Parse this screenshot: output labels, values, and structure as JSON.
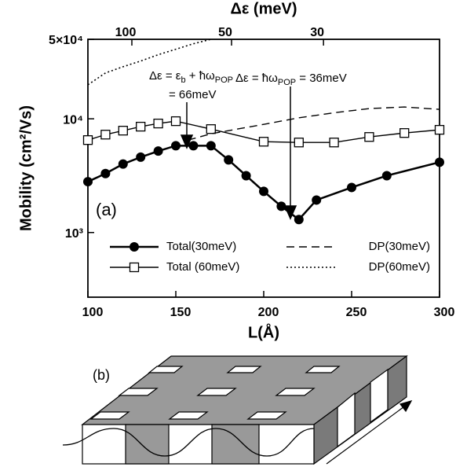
{
  "chart_data": {
    "type": "line",
    "x_label": "L(Å)",
    "y_label": "Mobility (cm²/Vs)",
    "x2_label": "Δε (meV)",
    "ylog": true,
    "xlim": [
      100,
      300
    ],
    "xticks": [
      100,
      150,
      200,
      250,
      300
    ],
    "x2ticks": [
      {
        "value": 125,
        "label": "100"
      },
      {
        "value": 181.7,
        "label": "50"
      },
      {
        "value": 234,
        "label": "30"
      }
    ],
    "ylim": [
      270,
      50000
    ],
    "yticks": [
      {
        "value": 1000,
        "label": "10³"
      },
      {
        "value": 10000,
        "label": "10⁴"
      },
      {
        "value": 50000,
        "label": "5×10⁴"
      }
    ],
    "legend": "bottom",
    "panel_label": "(a)",
    "annotations": [
      {
        "lines": [
          [
            "Δε = ε",
            "b",
            " + ħω",
            "POP"
          ],
          [
            "= 66meV"
          ]
        ]
      },
      {
        "lines": [
          [
            "Δε = ħω",
            "POP",
            " = 36meV"
          ]
        ]
      }
    ],
    "series": [
      {
        "name": "Total(30meV)",
        "color": "#000000",
        "marker": "circle",
        "dash": "solid",
        "x": [
          100,
          110,
          120,
          130,
          140,
          150,
          160,
          170,
          180,
          190,
          200,
          210,
          220,
          230,
          250,
          270,
          300
        ],
        "values": [
          2800,
          3300,
          4000,
          4600,
          5200,
          5800,
          5800,
          5800,
          4350,
          3160,
          2300,
          1700,
          1300,
          1930,
          2490,
          3160,
          4150
        ]
      },
      {
        "name": "Total (60meV)",
        "color": "#000000",
        "marker": "square",
        "dash": "solid",
        "x": [
          100,
          110,
          120,
          130,
          140,
          150,
          170,
          200,
          220,
          240,
          260,
          280,
          300
        ],
        "values": [
          6500,
          7260,
          7870,
          8530,
          9090,
          9530,
          8120,
          6290,
          6190,
          6190,
          6920,
          7500,
          8000
        ]
      },
      {
        "name": "DP(30meV)",
        "color": "#000000",
        "marker": "none",
        "dash": "dashed",
        "x": [
          157,
          170,
          200,
          220,
          240,
          260,
          280,
          300
        ],
        "values": [
          6500,
          7380,
          8940,
          10200,
          11300,
          12300,
          12700,
          12100
        ]
      },
      {
        "name": "DP(60meV)",
        "color": "#000000",
        "marker": "none",
        "dash": "dotted",
        "x": [
          100,
          110,
          120,
          130,
          140,
          150,
          160,
          170
        ],
        "values": [
          19900,
          25300,
          28700,
          32200,
          36600,
          40900,
          45700,
          50000
        ]
      }
    ]
  },
  "diagram": {
    "label": "(b)"
  }
}
